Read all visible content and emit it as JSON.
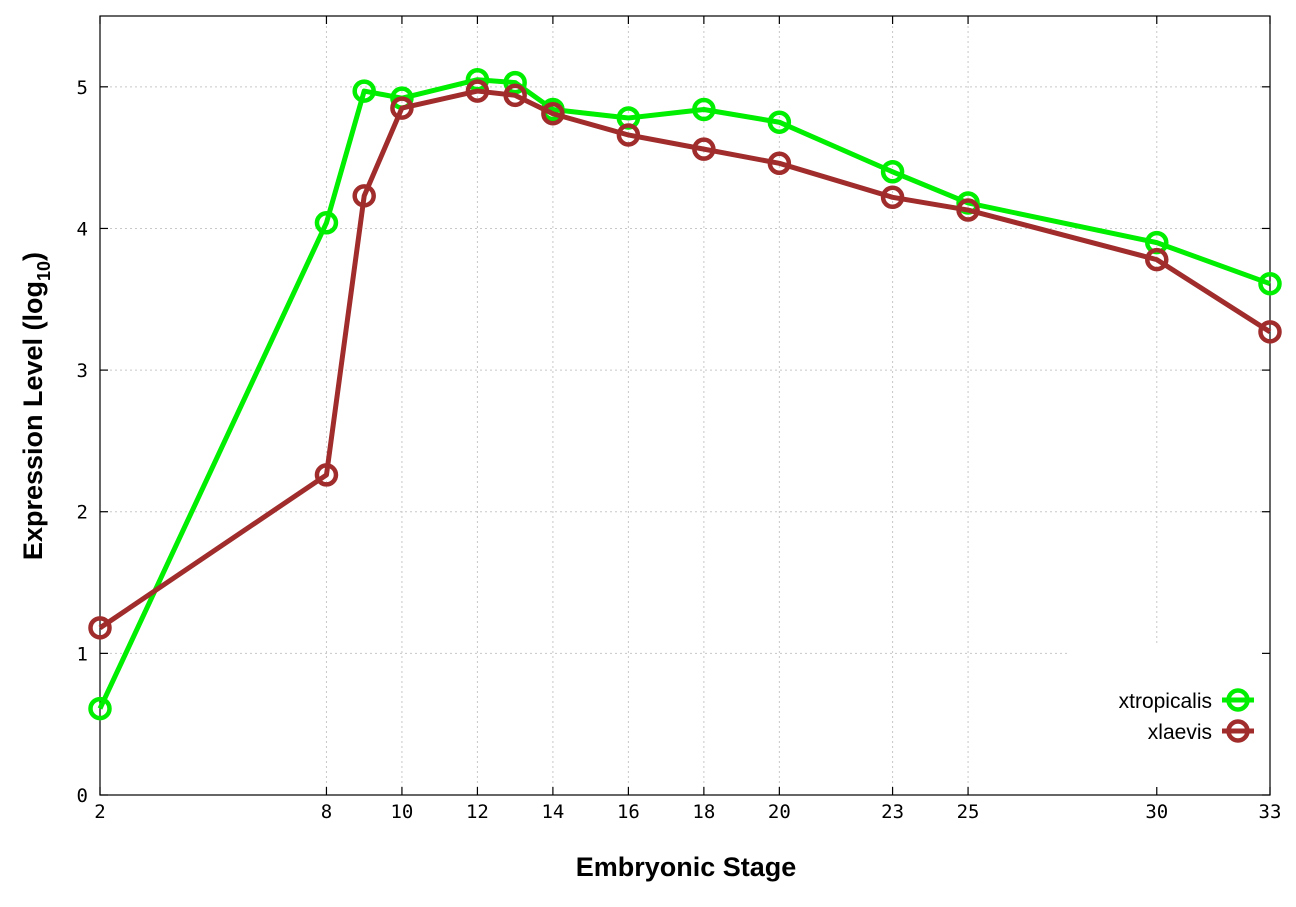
{
  "chart_data": {
    "type": "line",
    "xlabel": "Embryonic Stage",
    "ylabel_main": "Expression Level (log",
    "ylabel_sub": "10",
    "ylabel_end": ")",
    "x_ticks": [
      2,
      8,
      10,
      12,
      14,
      16,
      18,
      20,
      23,
      25,
      30,
      33
    ],
    "y_ticks": [
      0,
      1,
      2,
      3,
      4,
      5
    ],
    "xlim": [
      2,
      33
    ],
    "ylim": [
      0,
      5.5
    ],
    "grid": true,
    "legend_position": "bottom-right",
    "x": [
      2,
      8,
      9,
      10,
      12,
      13,
      14,
      16,
      18,
      20,
      23,
      25,
      30,
      33
    ],
    "series": [
      {
        "name": "xtropicalis",
        "color": "#00ee00",
        "values": [
          0.61,
          4.04,
          4.97,
          4.92,
          5.05,
          5.03,
          4.84,
          4.78,
          4.84,
          4.75,
          4.4,
          4.18,
          3.9,
          3.61
        ]
      },
      {
        "name": "xlaevis",
        "color": "#a02c2c",
        "values": [
          1.18,
          2.26,
          4.23,
          4.85,
          4.97,
          4.94,
          4.81,
          4.66,
          4.56,
          4.46,
          4.22,
          4.13,
          3.78,
          3.27
        ]
      }
    ]
  }
}
